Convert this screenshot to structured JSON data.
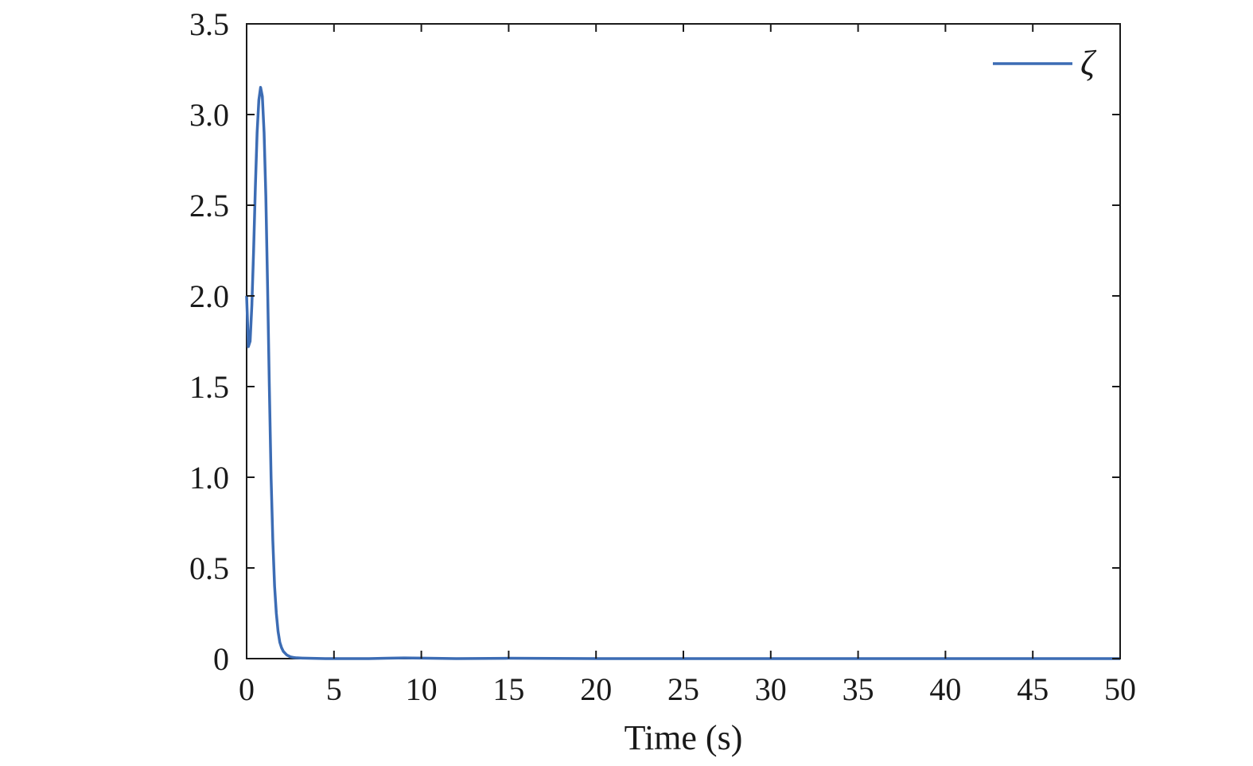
{
  "chart_data": {
    "type": "line",
    "title": "",
    "xlabel": "Time (s)",
    "ylabel": "",
    "xlim": [
      0,
      50
    ],
    "ylim": [
      0,
      3.5
    ],
    "xticks": [
      0,
      5,
      10,
      15,
      20,
      25,
      30,
      35,
      40,
      45,
      50
    ],
    "xtick_labels": [
      "0",
      "5",
      "10",
      "15",
      "20",
      "25",
      "30",
      "35",
      "40",
      "45",
      "50"
    ],
    "yticks": [
      0,
      0.5,
      1.0,
      1.5,
      2.0,
      2.5,
      3.0,
      3.5
    ],
    "ytick_labels": [
      "0",
      "0.5",
      "1.0",
      "1.5",
      "2.0",
      "2.5",
      "3.0",
      "3.5"
    ],
    "grid": false,
    "legend_position": "top-right",
    "series": [
      {
        "name": "ζ",
        "color": "#3c6cb4",
        "x": [
          0,
          0.1,
          0.2,
          0.3,
          0.4,
          0.5,
          0.6,
          0.7,
          0.8,
          0.9,
          1.0,
          1.1,
          1.2,
          1.3,
          1.4,
          1.5,
          1.6,
          1.7,
          1.8,
          1.9,
          2.0,
          2.1,
          2.2,
          2.3,
          2.4,
          2.5,
          2.6,
          2.7,
          2.8,
          3.0,
          3.2,
          3.5,
          4.0,
          4.5,
          5,
          6,
          7,
          8,
          9,
          10,
          12,
          15,
          20,
          25,
          30,
          35,
          40,
          45,
          50
        ],
        "y": [
          2.0,
          1.72,
          1.75,
          1.95,
          2.25,
          2.6,
          2.9,
          3.08,
          3.15,
          3.1,
          2.9,
          2.55,
          2.05,
          1.5,
          1.0,
          0.65,
          0.4,
          0.25,
          0.15,
          0.09,
          0.06,
          0.04,
          0.03,
          0.02,
          0.015,
          0.01,
          0.008,
          0.006,
          0.005,
          0.004,
          0.003,
          0.002,
          0.001,
          0.0,
          0.0,
          0.0,
          0.0,
          0.002,
          0.004,
          0.003,
          0.0,
          0.002,
          0.0,
          0.0,
          0.0,
          0.0,
          0.0,
          0.0,
          0.0
        ]
      }
    ]
  }
}
